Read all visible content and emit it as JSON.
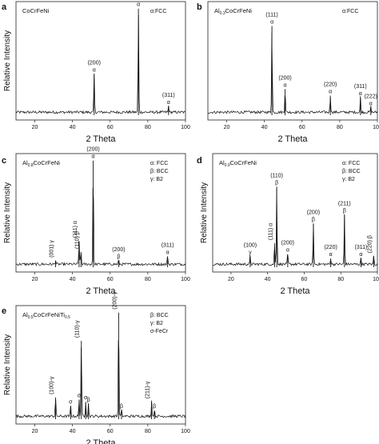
{
  "chart_data": [
    {
      "panel": "a",
      "type": "line",
      "title": "CoCrFeNi",
      "legend": [
        "α:FCC"
      ],
      "xlabel": "2 Theta",
      "ylabel": "Relative Intensity",
      "xlim": [
        10,
        100
      ],
      "xticks": [
        20,
        40,
        60,
        80,
        100
      ],
      "peaks": [
        {
          "x": 51.5,
          "h": 0.36,
          "labels": [
            "(200)",
            "α"
          ]
        },
        {
          "x": 75.0,
          "h": 0.96,
          "labels": [
            "(220)",
            "α"
          ]
        },
        {
          "x": 91.0,
          "h": 0.06,
          "labels": [
            "(311)",
            "α"
          ]
        }
      ]
    },
    {
      "panel": "b",
      "type": "line",
      "title": "Al0.3CoCrFeNi",
      "title_main": "Al",
      "title_sub": "0.3",
      "title_rest": "CoCrFeNi",
      "legend": [
        "α:FCC"
      ],
      "xlabel": "2 Theta",
      "ylabel": "",
      "xlim": [
        10,
        100
      ],
      "xticks": [
        20,
        40,
        60,
        80,
        100
      ],
      "peaks": [
        {
          "x": 44.0,
          "h": 0.8,
          "labels": [
            "(111)",
            "α"
          ]
        },
        {
          "x": 51.0,
          "h": 0.22,
          "labels": [
            "(200)",
            "α"
          ]
        },
        {
          "x": 75.0,
          "h": 0.16,
          "labels": [
            "(220)",
            "α"
          ]
        },
        {
          "x": 91.0,
          "h": 0.14,
          "labels": [
            "(311)",
            "α"
          ]
        },
        {
          "x": 96.5,
          "h": 0.05,
          "labels": [
            "(222)",
            "α"
          ]
        }
      ]
    },
    {
      "panel": "c",
      "type": "line",
      "title": "Al0.8CoCrFeNi",
      "title_main": "Al",
      "title_sub": "0.8",
      "title_rest": "CoCrFeNi",
      "legend": [
        "α: FCC",
        "β: BCC",
        "γ: B2"
      ],
      "xlabel": "2 Theta",
      "ylabel": "Relative Intensity",
      "xlim": [
        10,
        100
      ],
      "xticks": [
        20,
        40,
        60,
        80,
        100
      ],
      "peaks": [
        {
          "x": 31.0,
          "h": 0.04,
          "labels": [
            "(001)",
            "γ"
          ],
          "vertical": true
        },
        {
          "x": 43.5,
          "h": 0.22,
          "labels": [
            "(111)",
            "α"
          ],
          "vertical": true
        },
        {
          "x": 44.5,
          "h": 0.12,
          "labels": [
            "(110)",
            "β"
          ],
          "vertical": true
        },
        {
          "x": 51.0,
          "h": 0.96,
          "labels": [
            "(200)",
            "α"
          ]
        },
        {
          "x": 64.5,
          "h": 0.04,
          "labels": [
            "(200)",
            "β"
          ]
        },
        {
          "x": 90.5,
          "h": 0.08,
          "labels": [
            "(311)",
            "α"
          ]
        }
      ]
    },
    {
      "panel": "d",
      "type": "line",
      "title": "Al0.9CoCrFeNi",
      "title_main": "Al",
      "title_sub": "0.9",
      "title_rest": "CoCrFeNi",
      "legend": [
        "α: FCC",
        "β: BCC",
        "γ: B2"
      ],
      "xlabel": "2 Theta",
      "ylabel": "Relative Intensity",
      "xlim": [
        10,
        100
      ],
      "xticks": [
        20,
        40,
        60,
        80,
        100
      ],
      "peaks": [
        {
          "x": 30.5,
          "h": 0.08,
          "labels": [
            "(100)",
            "γ"
          ]
        },
        {
          "x": 43.8,
          "h": 0.2,
          "labels": [
            "(111)",
            "α"
          ],
          "vertical": true
        },
        {
          "x": 45.0,
          "h": 0.72,
          "labels": [
            "(110)",
            "β"
          ]
        },
        {
          "x": 51.0,
          "h": 0.1,
          "labels": [
            "(200)",
            "α"
          ]
        },
        {
          "x": 65.0,
          "h": 0.38,
          "labels": [
            "(200)",
            "β"
          ]
        },
        {
          "x": 74.5,
          "h": 0.06,
          "labels": [
            "(220)",
            "α"
          ]
        },
        {
          "x": 82.0,
          "h": 0.46,
          "labels": [
            "(211)",
            "β"
          ]
        },
        {
          "x": 91.0,
          "h": 0.06,
          "labels": [
            "(311)",
            "α"
          ]
        },
        {
          "x": 98.0,
          "h": 0.08,
          "labels": [
            "(220)",
            "β"
          ],
          "vertical": true
        }
      ]
    },
    {
      "panel": "e",
      "type": "line",
      "title": "Al0.5CoCrFeNiTi0.5",
      "title_main": "Al",
      "title_sub": "0.5",
      "title_rest": "CoCrFeNiTi",
      "title_sub2": "0.5",
      "legend": [
        "β: BCC",
        "γ: B2",
        "σ-FeCr"
      ],
      "xlabel": "2 Theta",
      "ylabel": "Relative Intensity",
      "xlim": [
        10,
        100
      ],
      "xticks": [
        20,
        40,
        60,
        80,
        100
      ],
      "peaks": [
        {
          "x": 31.0,
          "h": 0.18,
          "labels": [
            "(100)-γ"
          ],
          "vertical": true
        },
        {
          "x": 39.0,
          "h": 0.1,
          "labels": [
            "σ"
          ]
        },
        {
          "x": 43.5,
          "h": 0.16,
          "labels": [
            "σ"
          ]
        },
        {
          "x": 44.7,
          "h": 0.7,
          "labels": [
            "(110)-γ"
          ],
          "vertical": true
        },
        {
          "x": 47.0,
          "h": 0.14,
          "labels": [
            "σ"
          ]
        },
        {
          "x": 48.5,
          "h": 0.12,
          "labels": [
            "β"
          ]
        },
        {
          "x": 64.5,
          "h": 0.96,
          "labels": [
            "(200)-γ"
          ],
          "vertical": true
        },
        {
          "x": 66.0,
          "h": 0.06,
          "labels": [
            "β"
          ]
        },
        {
          "x": 82.0,
          "h": 0.14,
          "labels": [
            "(211)-γ"
          ],
          "vertical": true
        },
        {
          "x": 83.5,
          "h": 0.06,
          "labels": [
            "β"
          ]
        }
      ]
    }
  ]
}
